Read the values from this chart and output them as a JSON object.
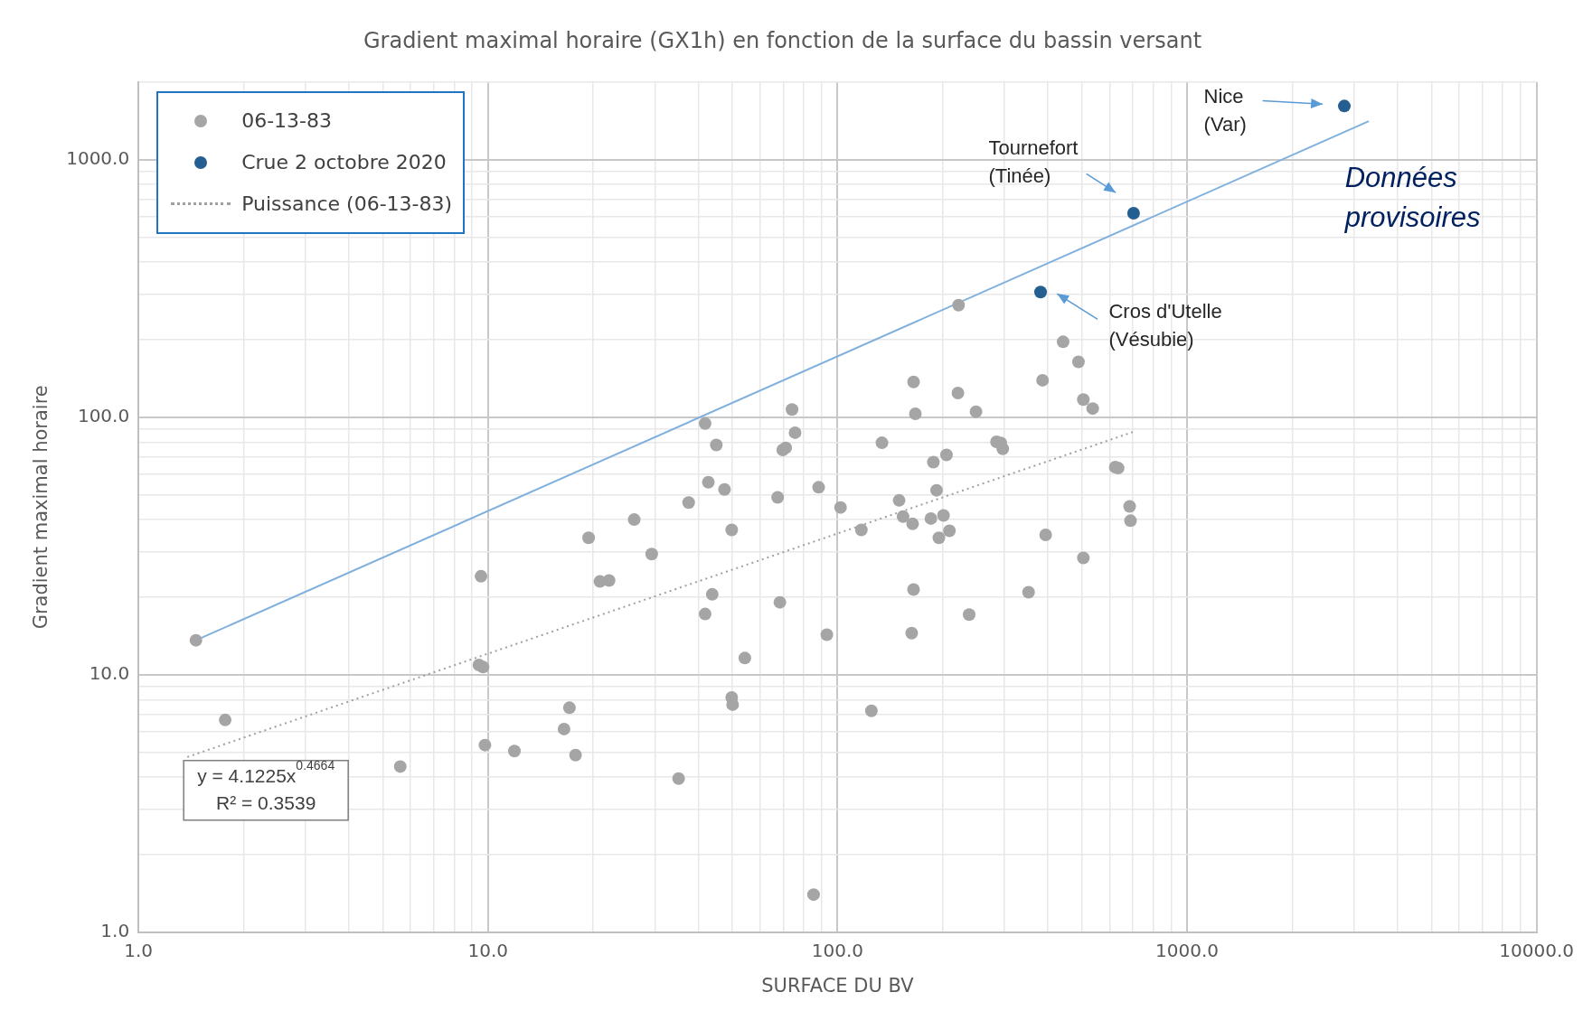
{
  "chart_data": {
    "type": "scatter",
    "title": "Gradient maximal horaire (GX1h) en fonction de la surface du bassin versant",
    "xlabel": "SURFACE DU BV",
    "ylabel": "Gradient maximal horaire",
    "log": "xy",
    "grid": true,
    "legend": "top left",
    "marker": "circle",
    "xlim": [
      1,
      10000
    ],
    "ylim": [
      1,
      2000
    ],
    "xticks": [
      {
        "value": 1,
        "label": "1.0"
      },
      {
        "value": 2,
        "label": null
      },
      {
        "value": 3,
        "label": null
      },
      {
        "value": 4,
        "label": null
      },
      {
        "value": 5,
        "label": null
      },
      {
        "value": 6,
        "label": null
      },
      {
        "value": 7,
        "label": null
      },
      {
        "value": 8,
        "label": null
      },
      {
        "value": 9,
        "label": null
      },
      {
        "value": 10,
        "label": "10.0"
      },
      {
        "value": 20,
        "label": null
      },
      {
        "value": 30,
        "label": null
      },
      {
        "value": 40,
        "label": null
      },
      {
        "value": 50,
        "label": null
      },
      {
        "value": 60,
        "label": null
      },
      {
        "value": 70,
        "label": null
      },
      {
        "value": 80,
        "label": null
      },
      {
        "value": 90,
        "label": null
      },
      {
        "value": 100,
        "label": "100.0"
      },
      {
        "value": 200,
        "label": null
      },
      {
        "value": 300,
        "label": null
      },
      {
        "value": 400,
        "label": null
      },
      {
        "value": 500,
        "label": null
      },
      {
        "value": 600,
        "label": null
      },
      {
        "value": 700,
        "label": null
      },
      {
        "value": 800,
        "label": null
      },
      {
        "value": 900,
        "label": null
      },
      {
        "value": 1000,
        "label": "1000.0"
      },
      {
        "value": 2000,
        "label": null
      },
      {
        "value": 3000,
        "label": null
      },
      {
        "value": 4000,
        "label": null
      },
      {
        "value": 5000,
        "label": null
      },
      {
        "value": 6000,
        "label": null
      },
      {
        "value": 7000,
        "label": null
      },
      {
        "value": 8000,
        "label": null
      },
      {
        "value": 9000,
        "label": null
      },
      {
        "value": 10000,
        "label": "10000.0"
      }
    ],
    "yticks": [
      {
        "value": 1,
        "label": "1.0"
      },
      {
        "value": 2,
        "label": null
      },
      {
        "value": 3,
        "label": null
      },
      {
        "value": 4,
        "label": null
      },
      {
        "value": 5,
        "label": null
      },
      {
        "value": 6,
        "label": null
      },
      {
        "value": 7,
        "label": null
      },
      {
        "value": 8,
        "label": null
      },
      {
        "value": 9,
        "label": null
      },
      {
        "value": 10,
        "label": "10.0"
      },
      {
        "value": 20,
        "label": null
      },
      {
        "value": 30,
        "label": null
      },
      {
        "value": 40,
        "label": null
      },
      {
        "value": 50,
        "label": null
      },
      {
        "value": 60,
        "label": null
      },
      {
        "value": 70,
        "label": null
      },
      {
        "value": 80,
        "label": null
      },
      {
        "value": 90,
        "label": null
      },
      {
        "value": 100,
        "label": "100.0"
      },
      {
        "value": 200,
        "label": null
      },
      {
        "value": 300,
        "label": null
      },
      {
        "value": 400,
        "label": null
      },
      {
        "value": 500,
        "label": null
      },
      {
        "value": 600,
        "label": null
      },
      {
        "value": 700,
        "label": null
      },
      {
        "value": 800,
        "label": null
      },
      {
        "value": 900,
        "label": null
      },
      {
        "value": 1000,
        "label": "1000.0"
      },
      {
        "value": 2000,
        "label": null
      }
    ],
    "series": [
      {
        "name": "06-13-83",
        "color": "#a5a5a5",
        "x": [
          1.46,
          1.77,
          5.61,
          9.42,
          9.68,
          9.55,
          9.8,
          11.9,
          16.5,
          17.1,
          17.8,
          19.4,
          20.9,
          22.2,
          26.2,
          29.4,
          35.1,
          37.5,
          41.8,
          42.7,
          41.8,
          43.8,
          45.0,
          47.5,
          49.8,
          49.8,
          50.1,
          54.3,
          67.4,
          68.4,
          69.7,
          71.1,
          74.1,
          75.6,
          85.4,
          88.3,
          93.2,
          102,
          117,
          125,
          134,
          150,
          154,
          164,
          165,
          167,
          165,
          163,
          185,
          188,
          192,
          195,
          201,
          205,
          209,
          221,
          222,
          238,
          249,
          285,
          293,
          297,
          352,
          386,
          394,
          442,
          489,
          505,
          505,
          537,
          623,
          635,
          685,
          689
        ],
        "values": [
          13.6,
          6.67,
          4.4,
          10.9,
          10.7,
          24.1,
          5.33,
          5.05,
          6.15,
          7.44,
          4.87,
          34.0,
          23.0,
          23.2,
          40.0,
          29.4,
          3.95,
          46.6,
          94.4,
          55.9,
          17.2,
          20.5,
          78.0,
          52.4,
          36.5,
          8.15,
          7.65,
          11.6,
          48.8,
          19.1,
          74.6,
          76.0,
          107,
          87.0,
          1.4,
          53.4,
          14.3,
          44.6,
          36.5,
          7.24,
          79.5,
          47.5,
          41.1,
          38.5,
          137,
          103,
          21.4,
          14.5,
          40.4,
          66.9,
          52.0,
          34.0,
          41.5,
          71.3,
          36.2,
          124,
          272,
          17.1,
          105,
          80.2,
          79.4,
          75.3,
          20.9,
          139,
          34.9,
          196,
          164,
          117,
          28.4,
          108,
          64.0,
          63.4,
          45.0,
          39.6
        ]
      },
      {
        "name": "Crue 2 octobre 2020",
        "color": "#255e91",
        "x": [
          381,
          703,
          2818
        ],
        "values": [
          306,
          619,
          1614
        ]
      },
      {
        "name": "Puissance (06-13-83)",
        "type": "line",
        "color": "#a0a0a0",
        "line_style": "dotted",
        "marker": "none",
        "x": [
          1.38,
          699
        ],
        "values": [
          4.79,
          87.5
        ]
      },
      {
        "type": "line",
        "color": "#7fb0de",
        "line_style": "solid",
        "marker": "none",
        "x": [
          1.46,
          3311
        ],
        "values": [
          13.6,
          1409
        ]
      }
    ],
    "annotations": [
      "Nice\n(Var)",
      "Tournefort\n(Tinée)",
      "Cros d'Utelle\n(Vésubie)",
      "y = 4.1225x$^{0.4664}$",
      "R² = 0.3539",
      "Données\nprovisoires"
    ]
  }
}
